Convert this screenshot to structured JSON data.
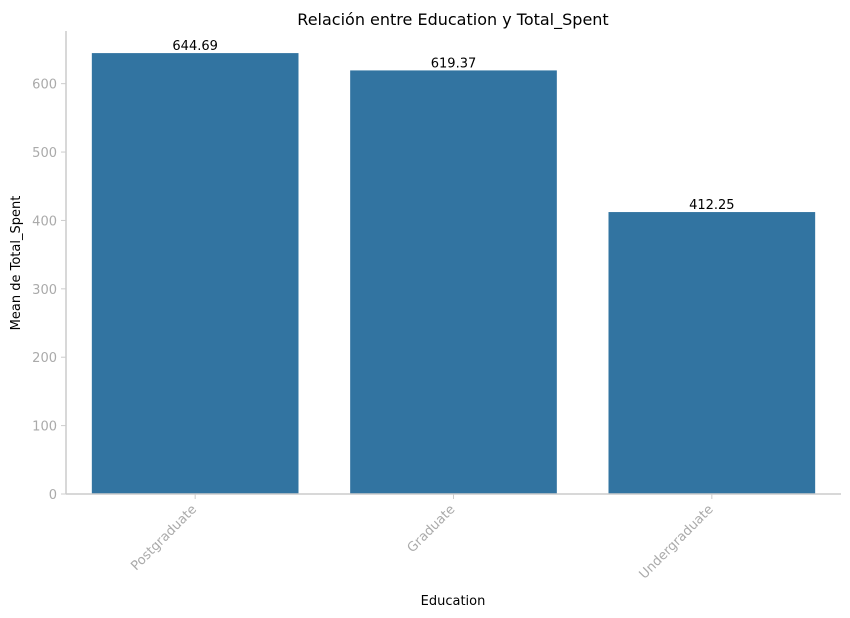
{
  "chart_data": {
    "type": "bar",
    "title": "Relación entre Education y Total_Spent",
    "xlabel": "Education",
    "ylabel": "Mean de Total_Spent",
    "categories": [
      "Postgraduate",
      "Graduate",
      "Undergraduate"
    ],
    "values": [
      644.69,
      619.37,
      412.25
    ],
    "value_labels": [
      "644.69",
      "619.37",
      "412.25"
    ],
    "ylim": [
      0,
      677
    ],
    "yticks": [
      0,
      100,
      200,
      300,
      400,
      500,
      600
    ],
    "bar_color": "#3274a1",
    "axis_color": "#cccccc",
    "tick_label_color": "#aaaaaa",
    "grid": false,
    "legend": "none",
    "xtick_rotation": 45
  }
}
